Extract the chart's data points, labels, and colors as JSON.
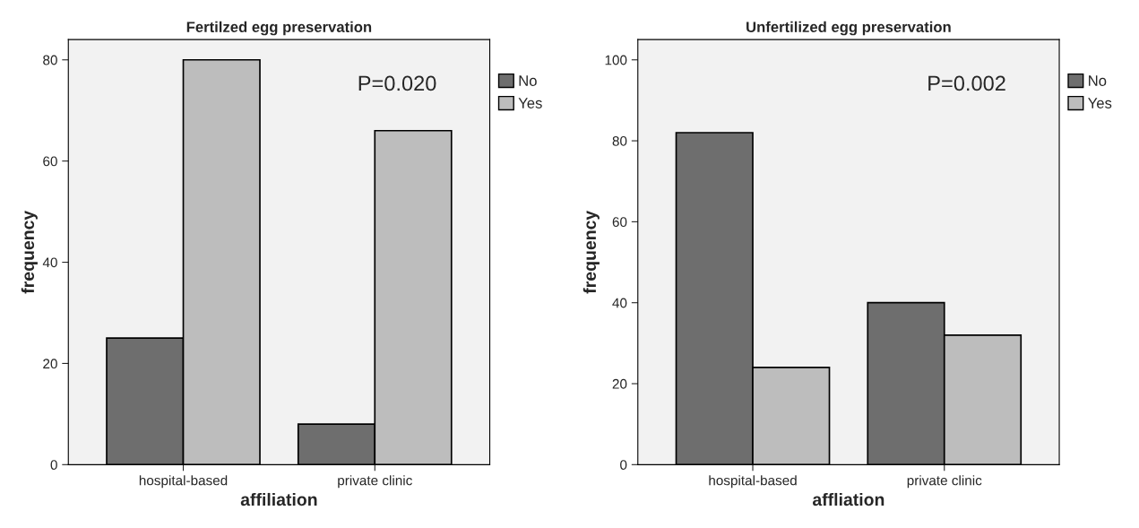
{
  "chart_data": [
    {
      "type": "bar",
      "title": "Fertilzed egg preservation",
      "xlabel": "affiliation",
      "ylabel": "frequency",
      "categories": [
        "hospital-based",
        "private clinic"
      ],
      "series": [
        {
          "name": "No",
          "color": "#6e6e6e",
          "values": [
            25,
            8
          ]
        },
        {
          "name": "Yes",
          "color": "#bdbdbd",
          "values": [
            80,
            66
          ]
        }
      ],
      "ylim": [
        0,
        84
      ],
      "yticks": [
        0,
        20,
        40,
        60,
        80
      ],
      "grid": false,
      "legend": "top right",
      "annotations": [
        "P=0.020"
      ]
    },
    {
      "type": "bar",
      "title": "Unfertilized egg preservation",
      "xlabel": "affliation",
      "ylabel": "frequency",
      "categories": [
        "hospital-based",
        "private clinic"
      ],
      "series": [
        {
          "name": "No",
          "color": "#6e6e6e",
          "values": [
            82,
            40
          ]
        },
        {
          "name": "Yes",
          "color": "#bdbdbd",
          "values": [
            24,
            32
          ]
        }
      ],
      "ylim": [
        0,
        105
      ],
      "yticks": [
        0,
        20,
        40,
        60,
        80,
        100
      ],
      "grid": false,
      "legend": "top right",
      "annotations": [
        "P=0.002"
      ]
    }
  ]
}
